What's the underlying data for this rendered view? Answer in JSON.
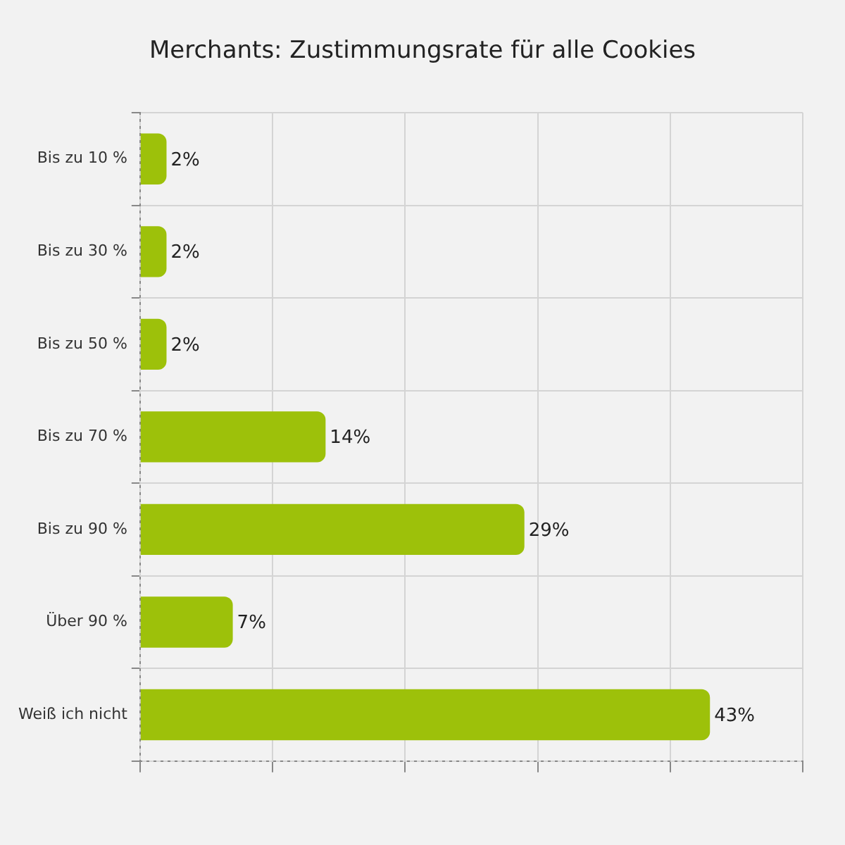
{
  "chart_data": {
    "type": "bar",
    "orientation": "horizontal",
    "title": "Merchants: Zustimmungsrate für alle Cookies",
    "categories": [
      "Bis zu 10 %",
      "Bis zu 30 %",
      "Bis zu 50 %",
      "Bis zu 70 %",
      "Bis zu 90 %",
      "Über 90 %",
      "Weiß ich nicht"
    ],
    "values": [
      2,
      2,
      2,
      14,
      29,
      7,
      43
    ],
    "value_labels": [
      "2%",
      "2%",
      "2%",
      "14%",
      "29%",
      "7%",
      "43%"
    ],
    "color": "#9dc10a",
    "xlim": [
      0,
      50
    ],
    "xticks": [
      {
        "value": 0,
        "label": null
      },
      {
        "value": 10,
        "label": null
      },
      {
        "value": 20,
        "label": null
      },
      {
        "value": 30,
        "label": null
      },
      {
        "value": 40,
        "label": null
      },
      {
        "value": 50,
        "label": null
      }
    ],
    "grid": true,
    "tick_labels": "y"
  }
}
